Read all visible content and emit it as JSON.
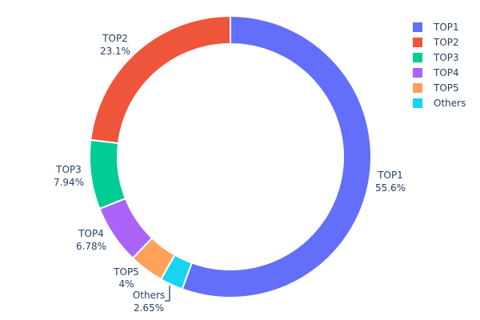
{
  "chart_data": {
    "type": "pie",
    "hole": true,
    "direction": "clockwise",
    "legend_position": "top-right",
    "slices": [
      {
        "label": "TOP1",
        "value": 55.6,
        "text": "55.6%",
        "color": "#636efa"
      },
      {
        "label": "TOP2",
        "value": 23.1,
        "text": "23.1%",
        "color": "#ef553b"
      },
      {
        "label": "TOP3",
        "value": 7.94,
        "text": "7.94%",
        "color": "#00cc96"
      },
      {
        "label": "TOP4",
        "value": 6.78,
        "text": "6.78%",
        "color": "#ab63fa"
      },
      {
        "label": "TOP5",
        "value": 4,
        "text": "4%",
        "color": "#ffa15a"
      },
      {
        "label": "Others",
        "value": 2.65,
        "text": "2.65%",
        "color": "#19d3f3"
      }
    ],
    "draw_order": [
      "TOP1",
      "Others",
      "TOP5",
      "TOP4",
      "TOP3",
      "TOP2"
    ]
  }
}
